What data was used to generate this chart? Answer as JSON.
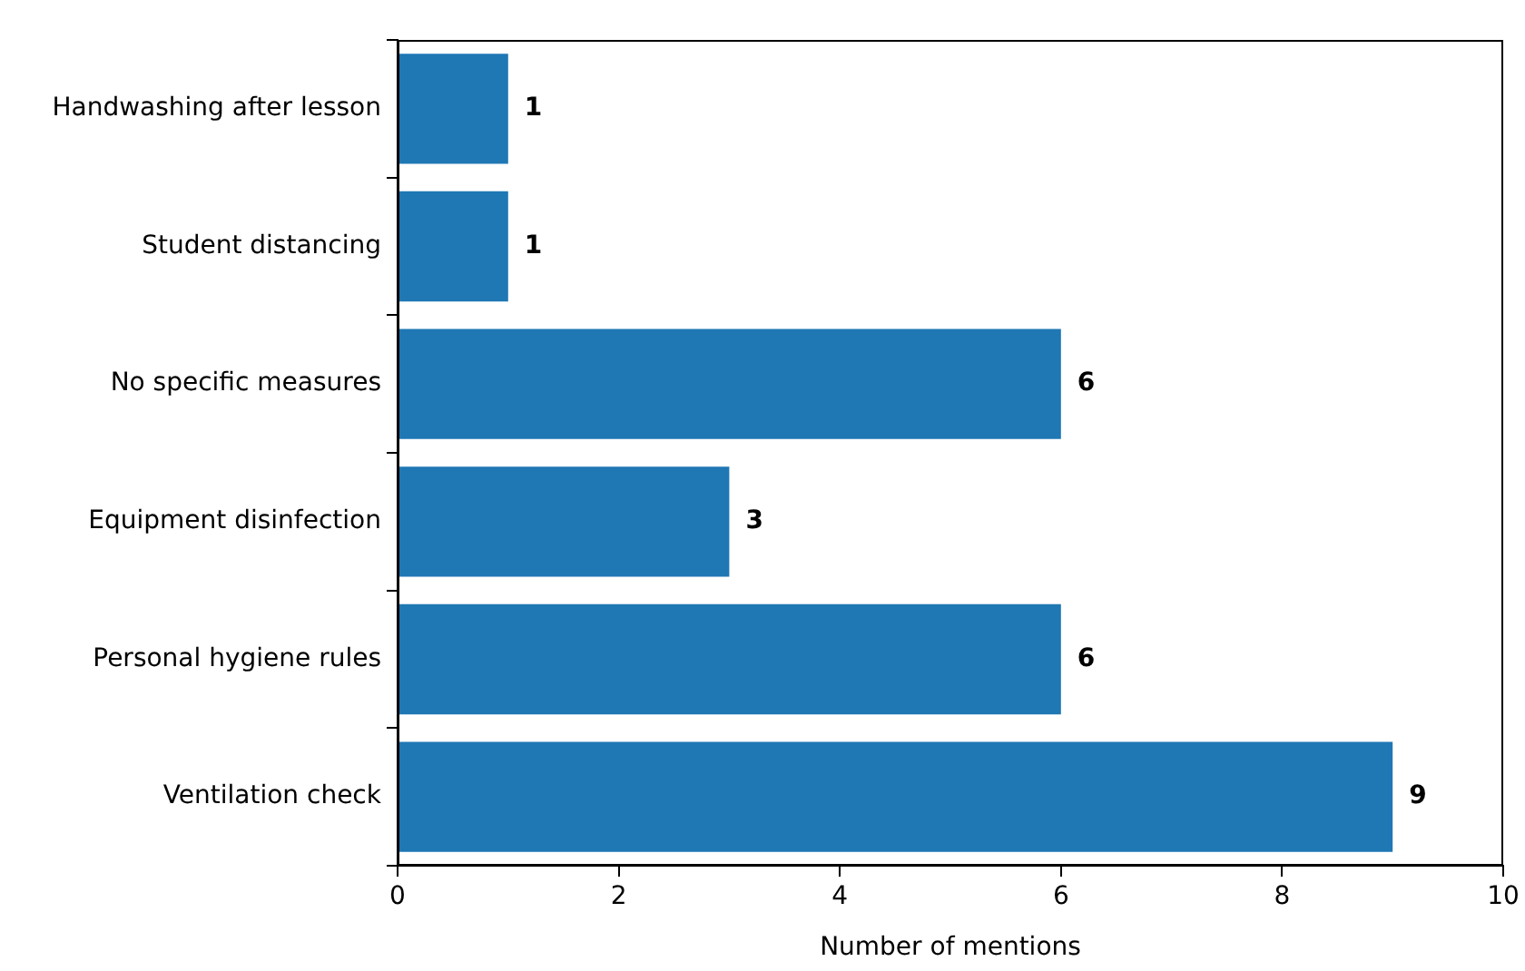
{
  "chart_data": {
    "type": "bar",
    "orientation": "horizontal",
    "xlabel": "Number of mentions",
    "categories": [
      "Handwashing after lesson",
      "Student distancing",
      "No specific measures",
      "Equipment disinfection",
      "Personal hygiene rules",
      "Ventilation check"
    ],
    "values": [
      1,
      1,
      6,
      3,
      6,
      9
    ],
    "color": "#1f77b4",
    "xlim": [
      0,
      10
    ],
    "xticks": [
      0,
      2,
      4,
      6,
      8,
      10
    ],
    "grid": false,
    "legend": false,
    "data_labels": true
  }
}
